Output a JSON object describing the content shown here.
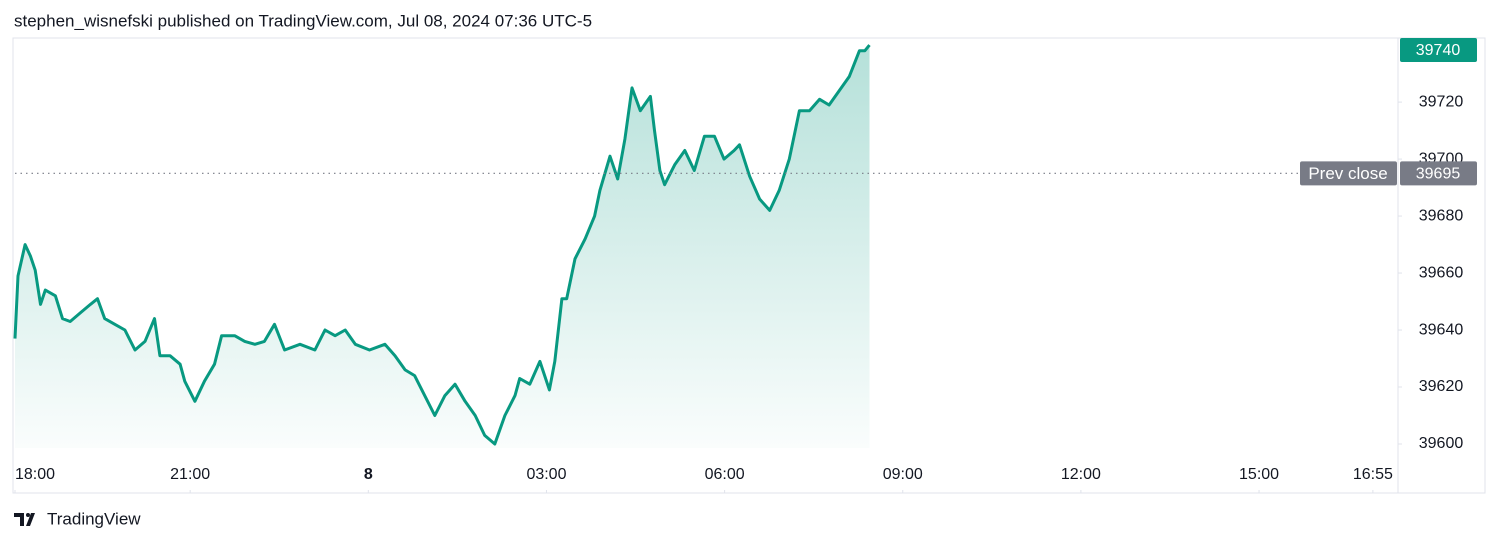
{
  "chart_data": {
    "type": "line",
    "title": "stephen_wisnefski published on TradingView.com, Jul 08, 2024 07:36 UTC-5",
    "brand": "TradingView",
    "x": [
      18.05,
      18.1,
      18.22,
      18.31,
      18.39,
      18.48,
      18.56,
      18.73,
      18.85,
      18.98,
      19.15,
      19.32,
      19.44,
      19.56,
      19.73,
      19.9,
      20.07,
      20.24,
      20.4,
      20.49,
      20.66,
      20.83,
      20.91,
      21.08,
      21.24,
      21.41,
      21.53,
      21.75,
      21.92,
      22.09,
      22.25,
      22.42,
      22.59,
      22.85,
      23.1,
      23.27,
      23.44,
      23.61,
      23.78,
      24.02,
      24.28,
      24.45,
      24.62,
      24.78,
      24.95,
      25.12,
      25.29,
      25.46,
      25.63,
      25.8,
      25.96,
      26.13,
      26.3,
      26.47,
      26.55,
      26.72,
      26.89,
      27.05,
      27.14,
      27.26,
      27.34,
      27.48,
      27.65,
      27.81,
      27.9,
      28.07,
      28.2,
      28.32,
      28.44,
      28.58,
      28.75,
      28.82,
      28.91,
      28.99,
      29.16,
      29.33,
      29.49,
      29.66,
      29.83,
      29.99,
      30.16,
      30.25,
      30.42,
      30.59,
      30.76,
      30.92,
      31.09,
      31.26,
      31.43,
      31.6,
      31.76,
      31.93,
      32.1,
      32.27,
      32.36,
      32.44
    ],
    "series": [
      {
        "color": "#089981",
        "values": [
          39637,
          39659,
          39670,
          39666,
          39661,
          39649,
          39654,
          39652,
          39644,
          39643,
          39646,
          39649,
          39651,
          39644,
          39642,
          39640,
          39633,
          39636,
          39644,
          39631,
          39631,
          39628,
          39622,
          39615,
          39622,
          39628,
          39638,
          39638,
          39636,
          39635,
          39636,
          39642,
          39633,
          39635,
          39633,
          39640,
          39638,
          39640,
          39635,
          39633,
          39635,
          39631,
          39626,
          39624,
          39617,
          39610,
          39617,
          39621,
          39615,
          39610,
          39603,
          39600,
          39610,
          39617,
          39623,
          39621,
          39629,
          39619,
          39629,
          39651,
          39651,
          39665,
          39672,
          39680,
          39689,
          39701,
          39693,
          39707,
          39725,
          39717,
          39722,
          39710,
          39696,
          39691,
          39698,
          39703,
          39696,
          39708,
          39708,
          39700,
          39703,
          39705,
          39694,
          39686,
          39682,
          39689,
          39700,
          39717,
          39717,
          39721,
          39719,
          39724,
          39729,
          39738,
          39738,
          39740
        ]
      }
    ],
    "xlim": [
      18.05,
      41.34
    ],
    "ylim": [
      39582.8,
      39742.5
    ],
    "xticks": [
      {
        "value": 18,
        "label": "18:00"
      },
      {
        "value": 21,
        "label": "21:00"
      },
      {
        "value": 24,
        "label": "8"
      },
      {
        "value": 27,
        "label": "03:00"
      },
      {
        "value": 30,
        "label": "06:00"
      },
      {
        "value": 33,
        "label": "09:00"
      },
      {
        "value": 36,
        "label": "12:00"
      },
      {
        "value": 39,
        "label": "15:00"
      },
      {
        "value": 40.917,
        "label": "16:55"
      }
    ],
    "yticks": [
      39600,
      39620,
      39640,
      39660,
      39680,
      39700,
      39720
    ],
    "last_price": 39740,
    "prev_close_label": "Prev close",
    "prev_close": 39695
  }
}
